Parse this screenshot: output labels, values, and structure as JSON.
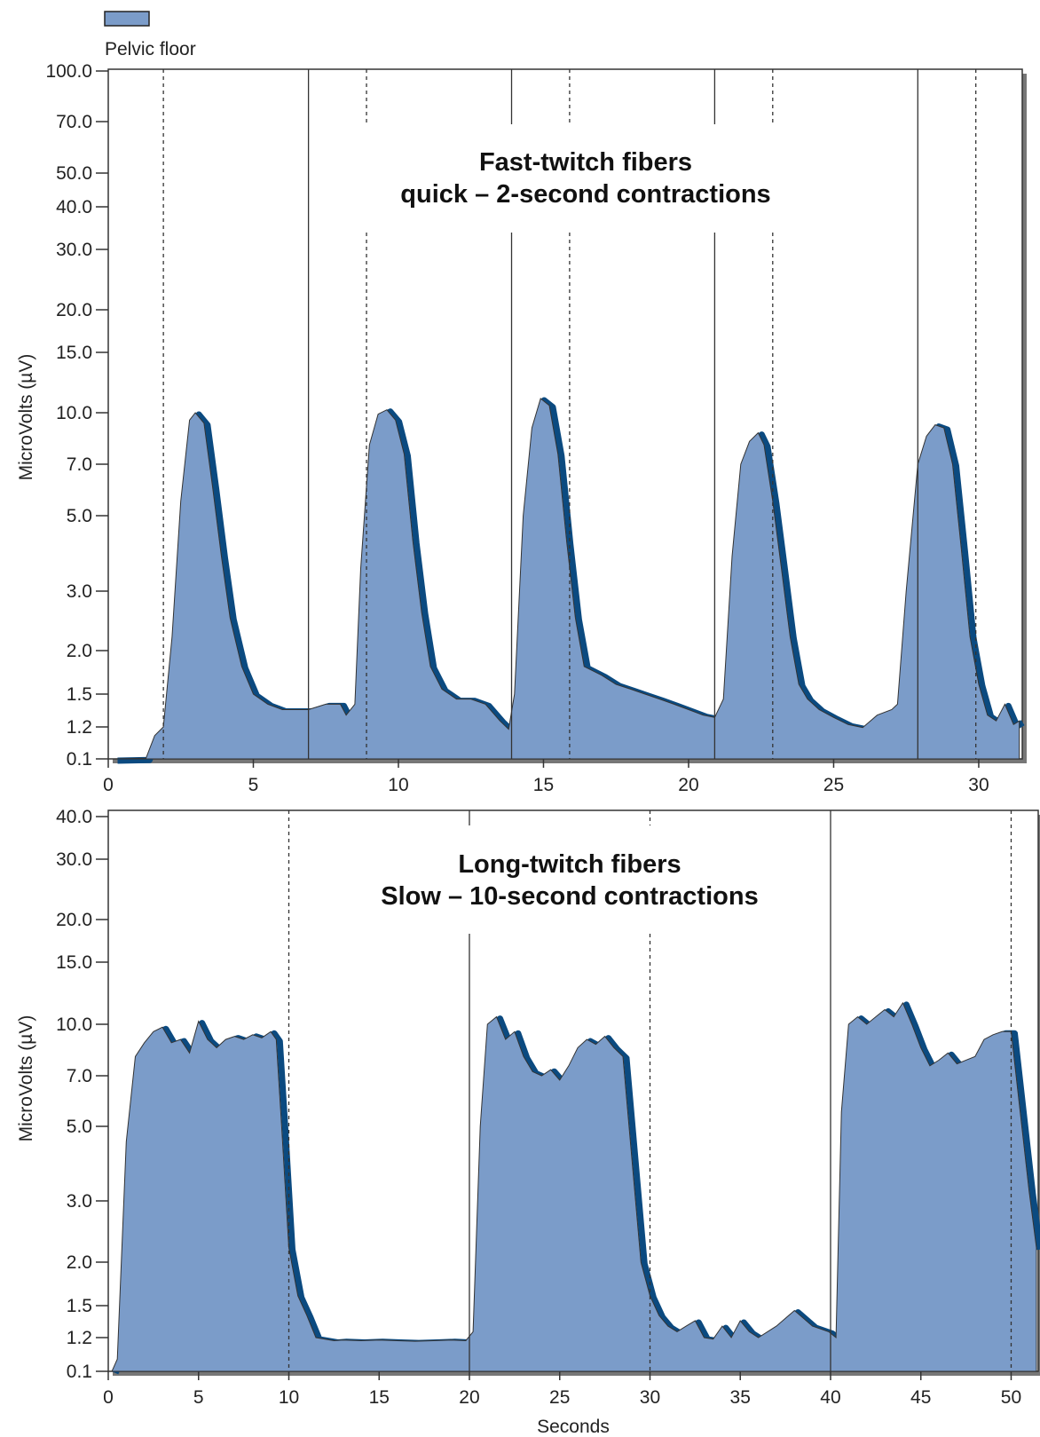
{
  "legend": {
    "label": "Pelvic floor",
    "color": "#7b9cc9"
  },
  "colors": {
    "fill": "#7b9cc9",
    "edge": "#0b4a80",
    "frame": "#555555"
  },
  "chart_data": [
    {
      "type": "area",
      "series": [
        {
          "name": "Pelvic floor"
        }
      ],
      "ylabel": "MicroVolts (µV)",
      "xlabel": "",
      "annotation": [
        "Fast-twitch fibers",
        "quick – 2-second contractions"
      ],
      "xlim": [
        0,
        31.5
      ],
      "xticks": [
        0,
        5,
        10,
        15,
        20,
        25,
        30
      ],
      "yticks": [
        "0.1",
        "1.2",
        "1.5",
        "2.0",
        "3.0",
        "5.0",
        "7.0",
        "10.0",
        "15.0",
        "20.0",
        "30.0",
        "40.0",
        "50.0",
        "70.0",
        "100.0"
      ],
      "solid_markers": [
        6.9,
        13.9,
        20.9,
        27.9
      ],
      "dotted_markers": [
        1.9,
        8.9,
        15.9,
        22.9,
        29.9
      ],
      "x": [
        0.2,
        1.3,
        1.6,
        1.9,
        2.2,
        2.5,
        2.8,
        3.0,
        3.3,
        3.6,
        3.9,
        4.2,
        4.6,
        5.0,
        5.5,
        6.0,
        6.9,
        7.5,
        8.0,
        8.2,
        8.5,
        8.7,
        9.0,
        9.3,
        9.6,
        9.9,
        10.2,
        10.5,
        10.8,
        11.1,
        11.5,
        12.0,
        12.5,
        13.0,
        13.5,
        13.8,
        14.0,
        14.3,
        14.6,
        14.9,
        15.2,
        15.5,
        15.8,
        16.1,
        16.4,
        17.0,
        17.5,
        18.0,
        18.5,
        19.0,
        19.5,
        20.0,
        20.5,
        20.9,
        21.2,
        21.5,
        21.8,
        22.1,
        22.4,
        22.6,
        22.9,
        23.2,
        23.5,
        23.8,
        24.1,
        24.5,
        25.0,
        25.5,
        26.0,
        26.5,
        27.0,
        27.2,
        27.5,
        27.9,
        28.2,
        28.5,
        28.8,
        29.1,
        29.4,
        29.7,
        30.0,
        30.3,
        30.6,
        30.9,
        31.2,
        31.4
      ],
      "y": [
        0.1,
        0.12,
        0.9,
        1.2,
        2.2,
        5.5,
        9.5,
        10.0,
        9.3,
        6.0,
        3.8,
        2.5,
        1.8,
        1.5,
        1.4,
        1.35,
        1.35,
        1.4,
        1.4,
        1.3,
        1.4,
        3.5,
        8.0,
        9.9,
        10.2,
        9.5,
        7.5,
        4.2,
        2.6,
        1.8,
        1.55,
        1.45,
        1.45,
        1.4,
        1.25,
        1.12,
        1.5,
        5.0,
        9.0,
        11.0,
        10.5,
        7.5,
        4.2,
        2.5,
        1.8,
        1.7,
        1.6,
        1.55,
        1.5,
        1.45,
        1.4,
        1.35,
        1.3,
        1.28,
        1.45,
        3.8,
        7.0,
        8.2,
        8.7,
        8.0,
        5.5,
        3.5,
        2.2,
        1.6,
        1.45,
        1.35,
        1.28,
        1.22,
        1.18,
        1.3,
        1.35,
        1.4,
        3.0,
        7.0,
        8.5,
        9.2,
        9.0,
        7.0,
        4.0,
        2.2,
        1.6,
        1.3,
        1.25,
        1.4,
        1.22,
        1.25
      ]
    },
    {
      "type": "area",
      "series": [
        {
          "name": "Pelvic floor"
        }
      ],
      "ylabel": "MicroVolts (µV)",
      "xlabel": "Seconds",
      "annotation": [
        "Long-twitch fibers",
        "Slow – 10-second contractions"
      ],
      "xlim": [
        0,
        51.5
      ],
      "xticks": [
        0,
        5,
        10,
        15,
        20,
        25,
        30,
        35,
        40,
        45,
        50
      ],
      "yticks": [
        "0.1",
        "1.2",
        "1.5",
        "2.0",
        "3.0",
        "5.0",
        "7.0",
        "10.0",
        "15.0",
        "20.0",
        "30.0",
        "40.0"
      ],
      "solid_markers": [
        20.0,
        40.0
      ],
      "dotted_markers": [
        10.0,
        30.0,
        50.0
      ],
      "x": [
        0.2,
        0.5,
        1.0,
        1.5,
        2.0,
        2.5,
        3.0,
        3.5,
        4.0,
        4.5,
        5.0,
        5.5,
        6.0,
        6.5,
        7.0,
        7.5,
        8.0,
        8.5,
        9.0,
        9.3,
        9.6,
        10.0,
        10.5,
        11.0,
        11.5,
        12.0,
        12.5,
        13.0,
        14.0,
        15.0,
        16.0,
        17.0,
        18.0,
        19.0,
        19.8,
        20.2,
        20.6,
        21.0,
        21.5,
        22.0,
        22.5,
        23.0,
        23.5,
        24.0,
        24.5,
        25.0,
        25.5,
        26.0,
        26.5,
        27.0,
        27.5,
        28.0,
        28.5,
        29.0,
        29.5,
        30.0,
        30.5,
        31.0,
        31.5,
        32.0,
        32.5,
        33.0,
        33.5,
        34.0,
        34.5,
        35.0,
        35.5,
        36.0,
        37.0,
        38.0,
        39.0,
        39.9,
        40.3,
        40.6,
        41.0,
        41.5,
        42.0,
        42.5,
        43.0,
        43.5,
        44.0,
        44.5,
        45.0,
        45.5,
        46.0,
        46.5,
        47.0,
        47.5,
        48.0,
        48.5,
        49.0,
        49.5,
        50.0,
        50.5,
        51.0,
        51.4
      ],
      "y": [
        0.1,
        0.5,
        4.5,
        8.0,
        8.8,
        9.5,
        9.8,
        8.8,
        9.0,
        8.2,
        10.2,
        9.0,
        8.5,
        9.0,
        9.2,
        9.0,
        9.3,
        9.1,
        9.5,
        9.0,
        5.0,
        2.2,
        1.6,
        1.4,
        1.2,
        1.15,
        1.1,
        1.12,
        1.1,
        1.12,
        1.1,
        1.08,
        1.1,
        1.12,
        1.1,
        1.25,
        5.0,
        10.0,
        10.5,
        9.0,
        9.5,
        8.0,
        7.2,
        7.0,
        7.3,
        6.8,
        7.5,
        8.5,
        9.0,
        8.7,
        9.2,
        8.5,
        8.0,
        4.0,
        2.0,
        1.6,
        1.4,
        1.3,
        1.25,
        1.3,
        1.35,
        1.2,
        1.15,
        1.3,
        1.2,
        1.35,
        1.25,
        1.2,
        1.3,
        1.45,
        1.3,
        1.25,
        1.2,
        5.5,
        10.0,
        10.5,
        10.0,
        10.5,
        11.0,
        10.5,
        11.5,
        10.0,
        8.5,
        7.5,
        7.8,
        8.2,
        7.6,
        7.8,
        8.0,
        9.0,
        9.3,
        9.5,
        9.5,
        5.5,
        3.2,
        2.2
      ]
    }
  ]
}
